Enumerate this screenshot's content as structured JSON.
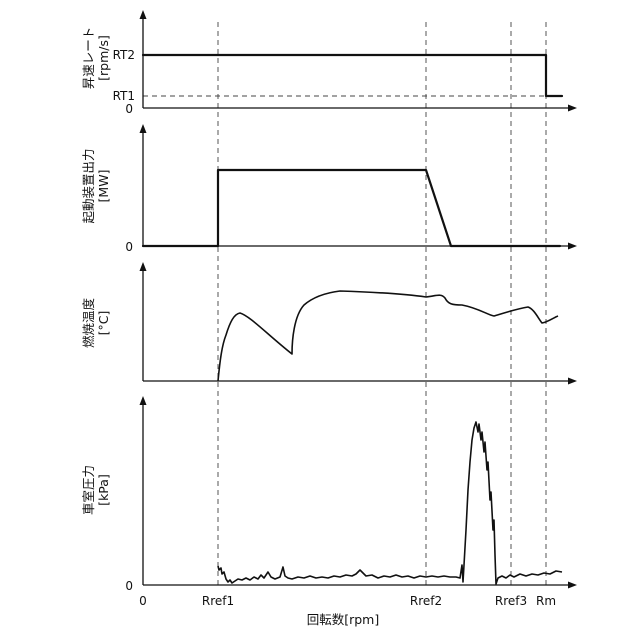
{
  "x_axis": {
    "label": "回転数[rpm]",
    "origin_label": "0",
    "ticks": [
      "Rref1",
      "Rref2",
      "Rref3",
      "Rm"
    ]
  },
  "panels": [
    {
      "id": "ramp-rate",
      "label_line1": "昇速レート",
      "label_line2": "[rpm/s]",
      "y_ticks": [
        "RT2",
        "RT1",
        "0"
      ]
    },
    {
      "id": "starter-output",
      "label_line1": "起動装置出力",
      "label_line2": "[MW]",
      "y_ticks": [
        "0"
      ]
    },
    {
      "id": "combustion-temperature",
      "label_line1": "燃焼温度",
      "label_line2": "[°C]",
      "y_ticks": []
    },
    {
      "id": "chamber-pressure",
      "label_line1": "車室圧力",
      "label_line2": "[kPa]",
      "y_ticks": [
        "0"
      ]
    }
  ],
  "colors": {
    "line": "#111111",
    "reference": "#444444",
    "background": "#ffffff"
  }
}
